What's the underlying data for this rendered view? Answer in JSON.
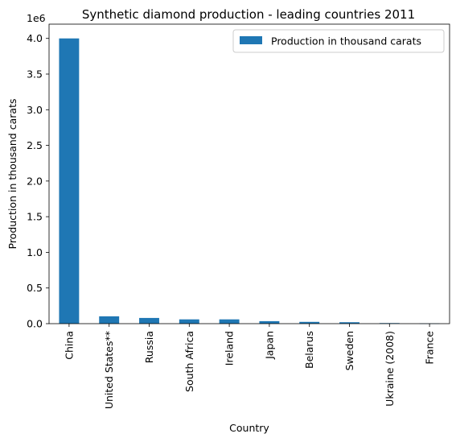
{
  "chart_data": {
    "type": "bar",
    "title": "Synthetic diamond production - leading countries 2011",
    "xlabel": "Country",
    "ylabel": "Production in thousand carats",
    "scale_label": "1e6",
    "categories": [
      "China",
      "United States**",
      "Russia",
      "South Africa",
      "Ireland",
      "Japan",
      "Belarus",
      "Sweden",
      "Ukraine (2008)",
      "France"
    ],
    "series": [
      {
        "name": "Production in thousand carats",
        "color": "#1f77b4",
        "values": [
          4000000,
          103000,
          80000,
          60000,
          60000,
          35000,
          25000,
          20000,
          8000,
          3000
        ]
      }
    ],
    "ylim": [
      0,
      4200000
    ],
    "yticks": [
      0,
      500000,
      1000000,
      1500000,
      2000000,
      2500000,
      3000000,
      3500000,
      4000000
    ],
    "ytick_labels": [
      "0.0",
      "0.5",
      "1.0",
      "1.5",
      "2.0",
      "2.5",
      "3.0",
      "3.5",
      "4.0"
    ],
    "legend_position": "top-right",
    "grid": false
  }
}
